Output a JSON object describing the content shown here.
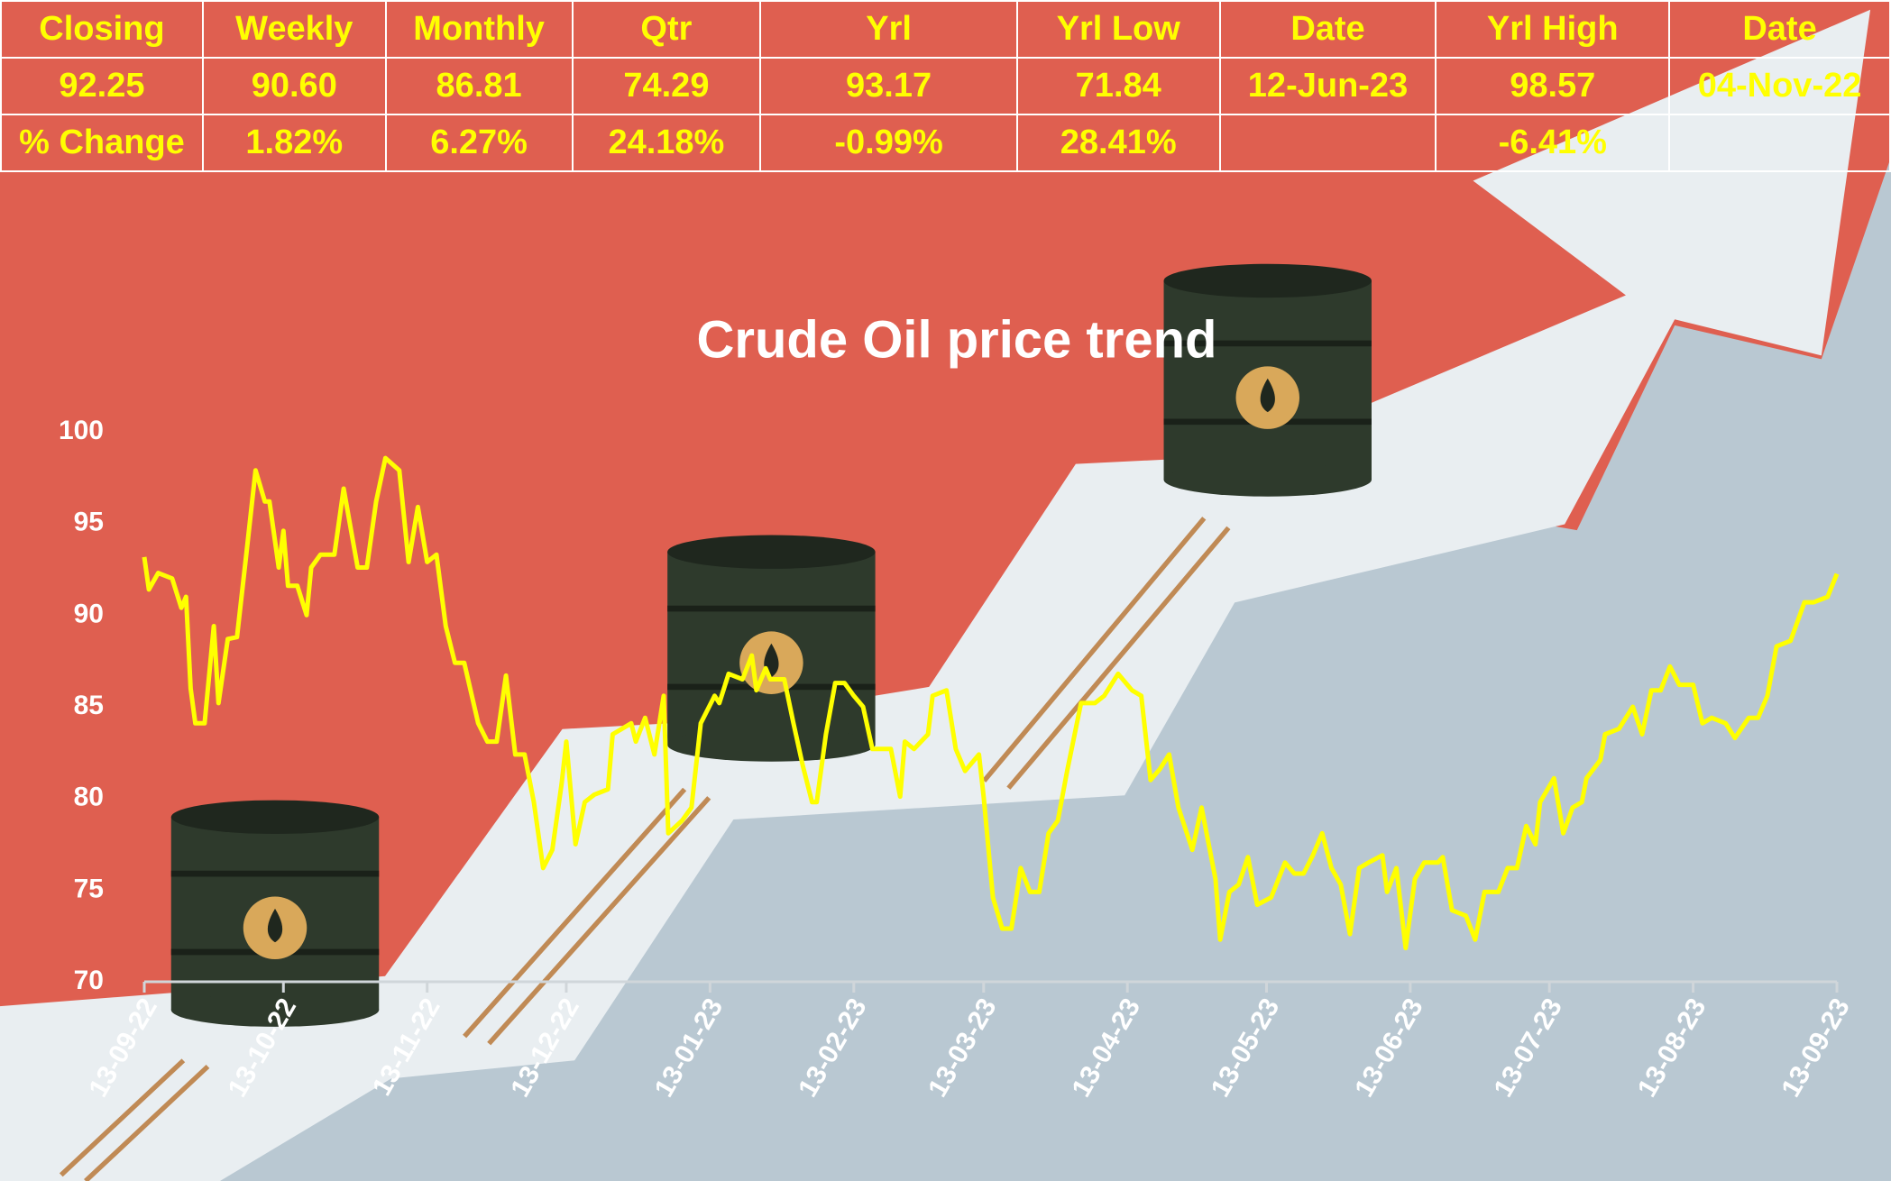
{
  "table": {
    "header": [
      "Closing",
      "Weekly",
      "Monthly",
      "Qtr",
      "Yrl",
      "Yrl Low",
      "Date",
      "Yrl High",
      "Date"
    ],
    "rows": [
      [
        "92.25",
        "90.60",
        "86.81",
        "74.29",
        "93.17",
        "71.84",
        "12-Jun-23",
        "98.57",
        "04-Nov-22"
      ],
      [
        "% Change",
        "1.82%",
        "6.27%",
        "24.18%",
        "-0.99%",
        "28.41%",
        null,
        "-6.41%",
        null
      ]
    ]
  },
  "chart_data": {
    "type": "line",
    "title": "Crude Oil price trend",
    "color": "#ffff00",
    "x": [
      "2022-09-13",
      "2022-09-14",
      "2022-09-16",
      "2022-09-19",
      "2022-09-21",
      "2022-09-22",
      "2022-09-23",
      "2022-09-24",
      "2022-09-26",
      "2022-09-28",
      "2022-09-29",
      "2022-10-01",
      "2022-10-03",
      "2022-10-05",
      "2022-10-07",
      "2022-10-09",
      "2022-10-10",
      "2022-10-12",
      "2022-10-13",
      "2022-10-14",
      "2022-10-16",
      "2022-10-18",
      "2022-10-19",
      "2022-10-21",
      "2022-10-24",
      "2022-10-26",
      "2022-10-29",
      "2022-10-31",
      "2022-11-02",
      "2022-11-04",
      "2022-11-07",
      "2022-11-09",
      "2022-11-11",
      "2022-11-13",
      "2022-11-15",
      "2022-11-17",
      "2022-11-19",
      "2022-11-21",
      "2022-11-24",
      "2022-11-26",
      "2022-11-28",
      "2022-11-30",
      "2022-12-02",
      "2022-12-04",
      "2022-12-06",
      "2022-12-08",
      "2022-12-10",
      "2022-12-12",
      "2022-12-13",
      "2022-12-15",
      "2022-12-17",
      "2022-12-19",
      "2022-12-22",
      "2022-12-23",
      "2022-12-27",
      "2022-12-28",
      "2022-12-30",
      "2023-01-01",
      "2023-01-03",
      "2023-01-04",
      "2023-01-07",
      "2023-01-09",
      "2023-01-11",
      "2023-01-14",
      "2023-01-15",
      "2023-01-17",
      "2023-01-20",
      "2023-01-22",
      "2023-01-23",
      "2023-01-25",
      "2023-01-26",
      "2023-01-29",
      "2023-01-31",
      "2023-02-02",
      "2023-02-04",
      "2023-02-05",
      "2023-02-07",
      "2023-02-09",
      "2023-02-11",
      "2023-02-13",
      "2023-02-15",
      "2023-02-17",
      "2023-02-19",
      "2023-02-21",
      "2023-02-23",
      "2023-02-24",
      "2023-02-26",
      "2023-03-01",
      "2023-03-02",
      "2023-03-05",
      "2023-03-07",
      "2023-03-09",
      "2023-03-12",
      "2023-03-13",
      "2023-03-15",
      "2023-03-17",
      "2023-03-19",
      "2023-03-21",
      "2023-03-23",
      "2023-03-25",
      "2023-03-27",
      "2023-03-29",
      "2023-03-31",
      "2023-04-03",
      "2023-04-06",
      "2023-04-08",
      "2023-04-11",
      "2023-04-14",
      "2023-04-16",
      "2023-04-18",
      "2023-04-20",
      "2023-04-22",
      "2023-04-24",
      "2023-04-27",
      "2023-04-29",
      "2023-05-02",
      "2023-05-03",
      "2023-05-05",
      "2023-05-07",
      "2023-05-09",
      "2023-05-11",
      "2023-05-14",
      "2023-05-17",
      "2023-05-19",
      "2023-05-21",
      "2023-05-23",
      "2023-05-25",
      "2023-05-27",
      "2023-05-29",
      "2023-05-31",
      "2023-06-02",
      "2023-06-04",
      "2023-06-07",
      "2023-06-08",
      "2023-06-10",
      "2023-06-12",
      "2023-06-14",
      "2023-06-16",
      "2023-06-19",
      "2023-06-20",
      "2023-06-22",
      "2023-06-25",
      "2023-06-27",
      "2023-06-29",
      "2023-07-02",
      "2023-07-04",
      "2023-07-06",
      "2023-07-08",
      "2023-07-10",
      "2023-07-11",
      "2023-07-14",
      "2023-07-16",
      "2023-07-18",
      "2023-07-20",
      "2023-07-21",
      "2023-07-24",
      "2023-07-25",
      "2023-07-28",
      "2023-07-31",
      "2023-08-02",
      "2023-08-04",
      "2023-08-06",
      "2023-08-08",
      "2023-08-10",
      "2023-08-13",
      "2023-08-15",
      "2023-08-17",
      "2023-08-20",
      "2023-08-22",
      "2023-08-25",
      "2023-08-27",
      "2023-08-29",
      "2023-08-31",
      "2023-09-03",
      "2023-09-06",
      "2023-09-08",
      "2023-09-11",
      "2023-09-13"
    ],
    "values": [
      93.17,
      91.4,
      92.3,
      92.0,
      90.4,
      91.0,
      86.0,
      84.1,
      84.1,
      89.4,
      85.2,
      88.7,
      88.8,
      93.3,
      97.9,
      96.2,
      96.2,
      92.6,
      94.6,
      91.6,
      91.6,
      90.0,
      92.6,
      93.3,
      93.3,
      96.9,
      92.6,
      92.6,
      96.2,
      98.57,
      97.9,
      92.9,
      95.9,
      92.9,
      93.3,
      89.4,
      87.4,
      87.4,
      84.1,
      83.1,
      83.1,
      86.7,
      82.4,
      82.4,
      79.8,
      76.2,
      77.2,
      80.8,
      83.1,
      77.5,
      79.8,
      80.2,
      80.5,
      83.5,
      84.1,
      83.1,
      84.4,
      82.4,
      85.6,
      78.1,
      78.8,
      79.5,
      84.1,
      85.6,
      85.2,
      86.8,
      86.5,
      87.8,
      85.9,
      87.1,
      86.5,
      86.5,
      84.1,
      81.8,
      79.8,
      79.8,
      83.5,
      86.3,
      86.3,
      85.6,
      85.0,
      82.7,
      82.7,
      82.7,
      80.1,
      83.1,
      82.7,
      83.5,
      85.6,
      85.9,
      82.7,
      81.5,
      82.4,
      80.1,
      74.6,
      72.9,
      72.9,
      76.2,
      74.9,
      74.9,
      78.1,
      78.8,
      81.5,
      85.2,
      85.2,
      85.6,
      86.8,
      85.9,
      85.6,
      81.0,
      81.6,
      82.4,
      79.5,
      77.2,
      79.5,
      75.6,
      72.3,
      74.9,
      75.3,
      76.8,
      74.2,
      74.6,
      76.5,
      75.9,
      75.9,
      76.9,
      78.1,
      76.2,
      75.3,
      72.6,
      76.2,
      76.5,
      76.9,
      74.9,
      76.2,
      71.84,
      75.6,
      76.5,
      76.5,
      76.8,
      73.9,
      73.6,
      72.3,
      74.9,
      74.9,
      76.2,
      76.2,
      78.5,
      77.5,
      79.8,
      81.1,
      78.1,
      79.5,
      79.8,
      81.1,
      82.1,
      83.5,
      83.8,
      85.0,
      83.5,
      85.9,
      85.9,
      87.2,
      86.2,
      86.2,
      84.1,
      84.4,
      84.1,
      83.3,
      84.4,
      84.4,
      85.6,
      88.3,
      88.6,
      90.7,
      90.7,
      91.0,
      92.25
    ],
    "xlim": [
      "2022-09-13",
      "2023-09-13"
    ],
    "xticks": [
      {
        "value": "2022-09-13",
        "label": "13-09-22"
      },
      {
        "value": "2022-10-13",
        "label": "13-10-22"
      },
      {
        "value": "2022-11-13",
        "label": "13-11-22"
      },
      {
        "value": "2022-12-13",
        "label": "13-12-22"
      },
      {
        "value": "2023-01-13",
        "label": "13-01-23"
      },
      {
        "value": "2023-02-13",
        "label": "13-02-23"
      },
      {
        "value": "2023-03-13",
        "label": "13-03-23"
      },
      {
        "value": "2023-04-13",
        "label": "13-04-23"
      },
      {
        "value": "2023-05-13",
        "label": "13-05-23"
      },
      {
        "value": "2023-06-13",
        "label": "13-06-23"
      },
      {
        "value": "2023-07-13",
        "label": "13-07-23"
      },
      {
        "value": "2023-08-13",
        "label": "13-08-23"
      },
      {
        "value": "2023-09-13",
        "label": "13-09-23"
      }
    ],
    "ylim": [
      70,
      100
    ],
    "yticks": [
      70,
      75,
      80,
      85,
      90,
      95,
      100
    ],
    "grid": false
  }
}
